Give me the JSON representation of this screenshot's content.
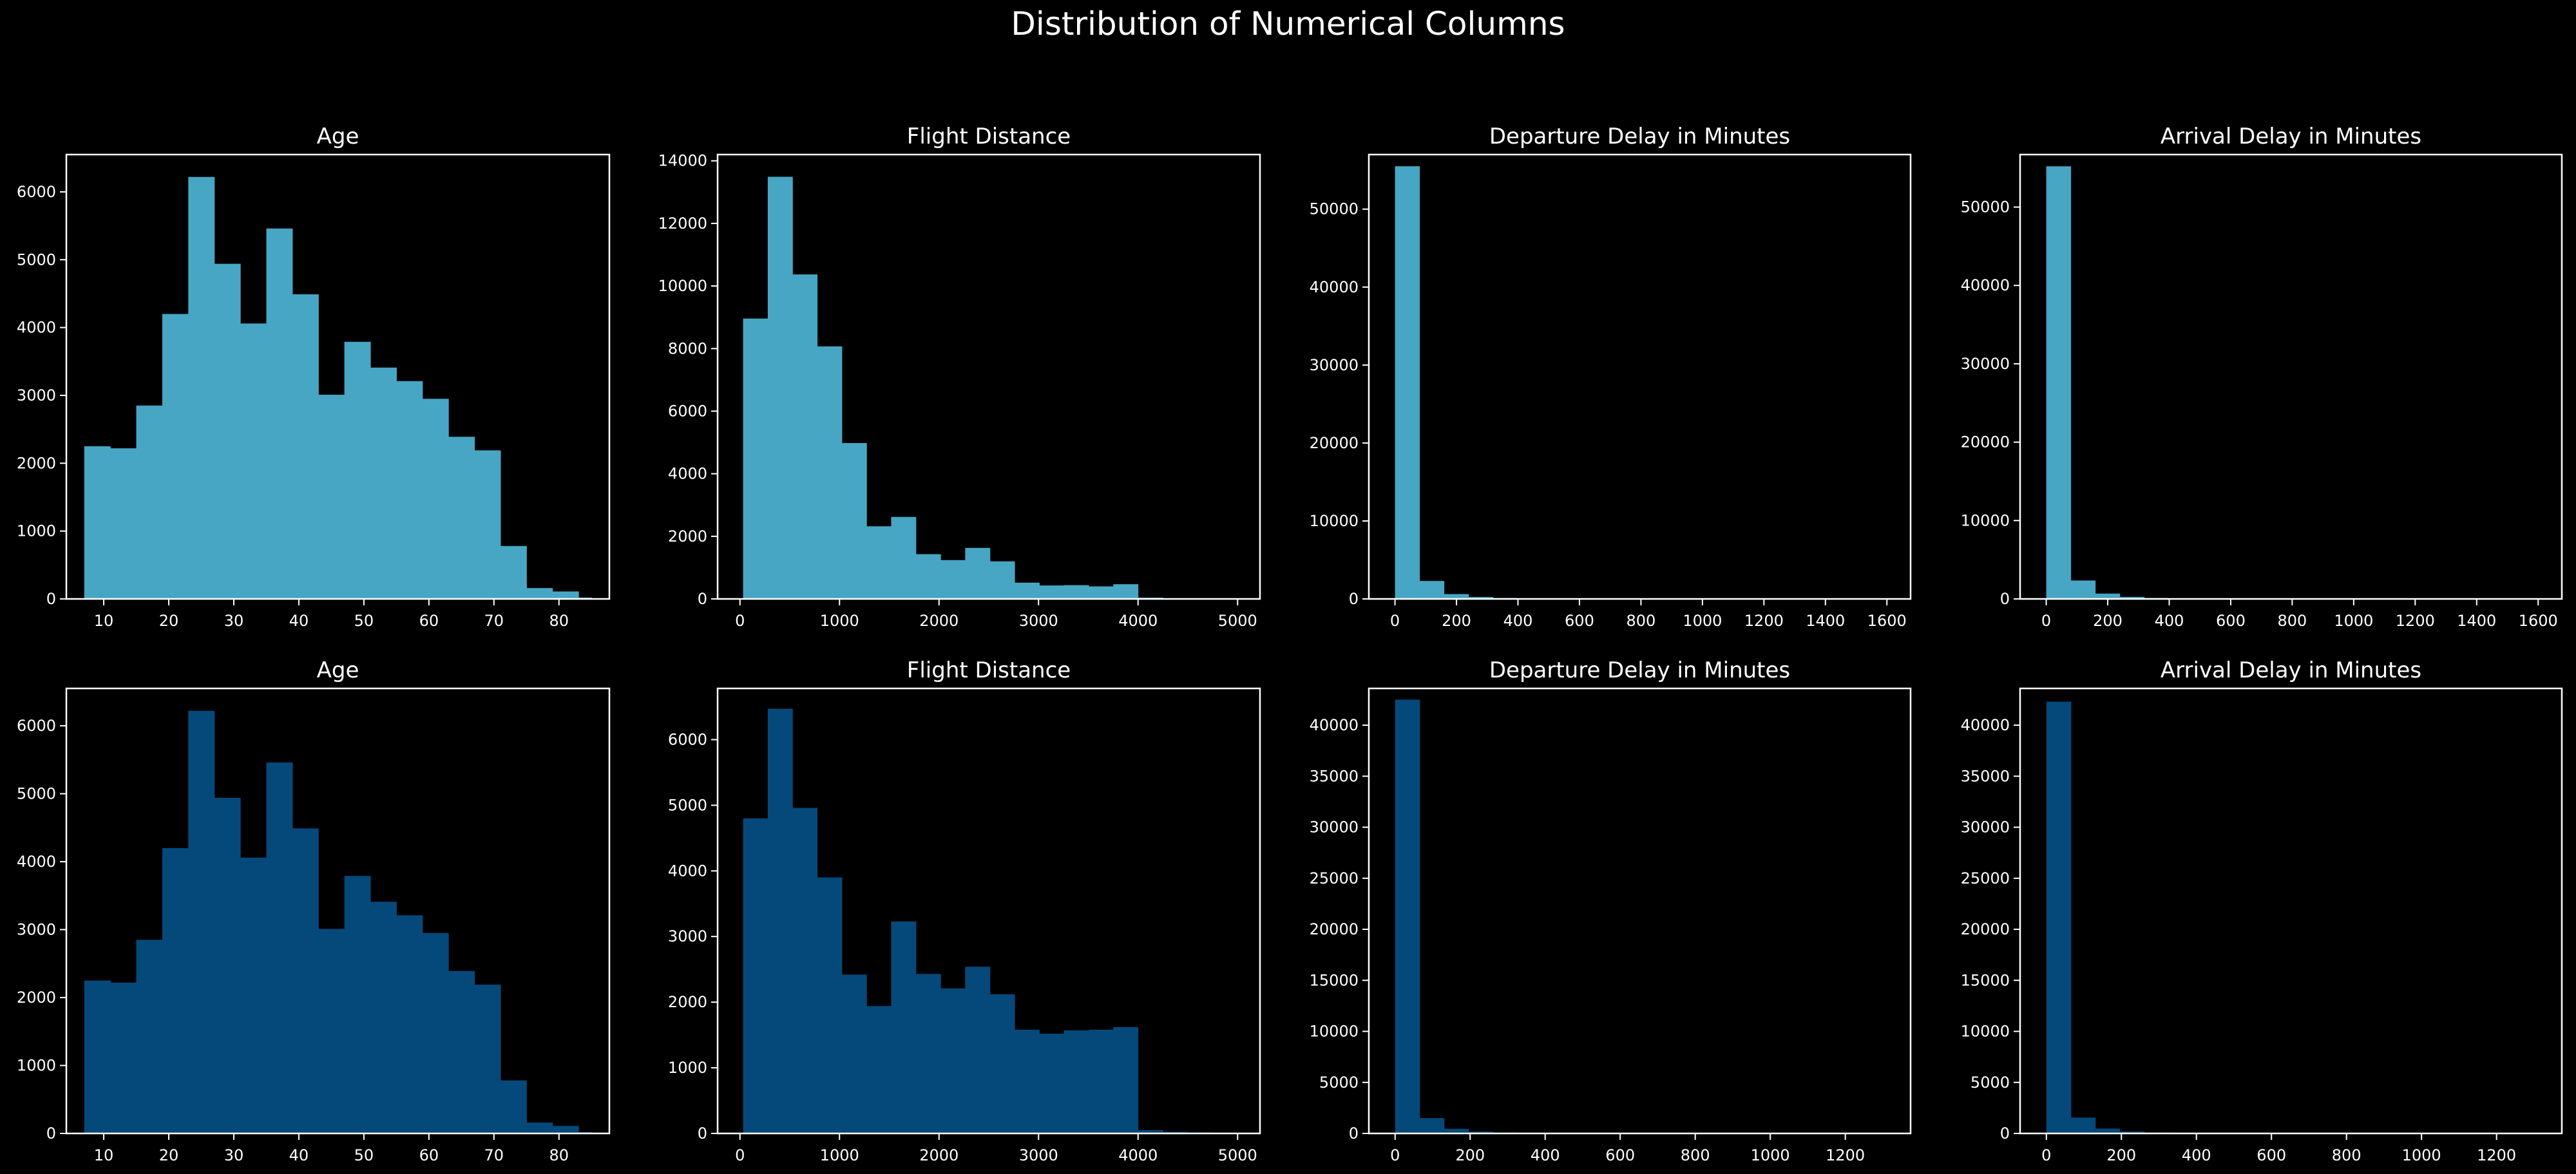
{
  "figure": {
    "title": "Distribution of Numerical Columns",
    "background": "#000000",
    "text_color": "#ffffff"
  },
  "chart_data": [
    {
      "type": "bar",
      "histogram": true,
      "title": "Age",
      "color": "#47a6c4",
      "xlim": [
        4.25,
        87.75
      ],
      "ylim": [
        0,
        6550
      ],
      "xticks": [
        10,
        20,
        30,
        40,
        50,
        60,
        70,
        80
      ],
      "yticks": [
        0,
        1000,
        2000,
        3000,
        4000,
        5000,
        6000
      ],
      "bin_edges": [
        7,
        11,
        15,
        19,
        23,
        27,
        31,
        35,
        39,
        43,
        47,
        51,
        55,
        59,
        63,
        67,
        71,
        75,
        79,
        83,
        85
      ],
      "values": [
        2250,
        2220,
        2850,
        4200,
        6220,
        4940,
        4060,
        5460,
        4490,
        3010,
        3790,
        3410,
        3210,
        2950,
        2390,
        2190,
        780,
        160,
        110,
        20
      ]
    },
    {
      "type": "bar",
      "histogram": true,
      "title": "Flight Distance",
      "color": "#47a6c4",
      "xlim": [
        -225,
        5225
      ],
      "ylim": [
        0,
        14200
      ],
      "xticks": [
        0,
        1000,
        2000,
        3000,
        4000,
        5000
      ],
      "yticks": [
        0,
        2000,
        4000,
        6000,
        8000,
        10000,
        12000,
        14000
      ],
      "bin_edges": [
        31,
        279,
        527,
        775,
        1023,
        1271,
        1519,
        1767,
        2015,
        2263,
        2511,
        2759,
        3007,
        3255,
        3503,
        3751,
        3999,
        4247,
        4495,
        4743,
        4983
      ],
      "values": [
        8960,
        13490,
        10370,
        8070,
        4980,
        2320,
        2620,
        1430,
        1240,
        1630,
        1200,
        520,
        430,
        440,
        400,
        470,
        40,
        20,
        10,
        10
      ]
    },
    {
      "type": "bar",
      "histogram": true,
      "title": "Departure Delay in Minutes",
      "color": "#47a6c4",
      "xlim": [
        -85,
        1677
      ],
      "ylim": [
        0,
        57000
      ],
      "xticks": [
        0,
        200,
        400,
        600,
        800,
        1000,
        1200,
        1400,
        1600
      ],
      "yticks": [
        0,
        10000,
        20000,
        30000,
        40000,
        50000
      ],
      "bin_edges": [
        0,
        79.6,
        159.2,
        238.8,
        318.4,
        398,
        477.6,
        557.2,
        636.8,
        716.4,
        796,
        875.6,
        955.2,
        1034.8,
        1114.4,
        1194,
        1273.6,
        1353.2,
        1432.8,
        1512.4,
        1592
      ],
      "values": [
        55500,
        2300,
        620,
        250,
        120,
        70,
        40,
        30,
        20,
        15,
        10,
        8,
        6,
        5,
        4,
        3,
        2,
        2,
        1,
        1
      ]
    },
    {
      "type": "bar",
      "histogram": true,
      "title": "Arrival Delay in Minutes",
      "color": "#47a6c4",
      "xlim": [
        -85,
        1677
      ],
      "ylim": [
        0,
        56700
      ],
      "xticks": [
        0,
        200,
        400,
        600,
        800,
        1000,
        1200,
        1400,
        1600
      ],
      "yticks": [
        0,
        10000,
        20000,
        30000,
        40000,
        50000
      ],
      "bin_edges": [
        0,
        79.6,
        159.2,
        238.8,
        318.4,
        398,
        477.6,
        557.2,
        636.8,
        716.4,
        796,
        875.6,
        955.2,
        1034.8,
        1114.4,
        1194,
        1273.6,
        1353.2,
        1432.8,
        1512.4,
        1592
      ],
      "values": [
        55200,
        2350,
        680,
        260,
        120,
        70,
        40,
        30,
        20,
        15,
        10,
        8,
        6,
        5,
        4,
        3,
        2,
        2,
        1,
        1
      ]
    },
    {
      "type": "bar",
      "histogram": true,
      "title": "Age",
      "color": "#05497a",
      "xlim": [
        4.25,
        87.75
      ],
      "ylim": [
        0,
        6550
      ],
      "xticks": [
        10,
        20,
        30,
        40,
        50,
        60,
        70,
        80
      ],
      "yticks": [
        0,
        1000,
        2000,
        3000,
        4000,
        5000,
        6000
      ],
      "bin_edges": [
        7,
        11,
        15,
        19,
        23,
        27,
        31,
        35,
        39,
        43,
        47,
        51,
        55,
        59,
        63,
        67,
        71,
        75,
        79,
        83,
        85
      ],
      "values": [
        2250,
        2220,
        2850,
        4200,
        6220,
        4940,
        4060,
        5460,
        4490,
        3010,
        3790,
        3410,
        3210,
        2950,
        2390,
        2190,
        780,
        160,
        110,
        20
      ]
    },
    {
      "type": "bar",
      "histogram": true,
      "title": "Flight Distance",
      "color": "#05497a",
      "xlim": [
        -225,
        5225
      ],
      "ylim": [
        0,
        6780
      ],
      "xticks": [
        0,
        1000,
        2000,
        3000,
        4000,
        5000
      ],
      "yticks": [
        0,
        1000,
        2000,
        3000,
        4000,
        5000,
        6000
      ],
      "bin_edges": [
        31,
        279,
        527,
        775,
        1023,
        1271,
        1519,
        1767,
        2015,
        2263,
        2511,
        2759,
        3007,
        3255,
        3503,
        3751,
        3999,
        4247,
        4495,
        4743,
        4983
      ],
      "values": [
        4800,
        6470,
        4960,
        3900,
        2420,
        1940,
        3230,
        2430,
        2210,
        2540,
        2120,
        1580,
        1520,
        1570,
        1580,
        1620,
        50,
        25,
        15,
        10
      ]
    },
    {
      "type": "bar",
      "histogram": true,
      "title": "Departure Delay in Minutes",
      "color": "#05497a",
      "xlim": [
        -70,
        1374
      ],
      "ylim": [
        0,
        43600
      ],
      "xticks": [
        0,
        200,
        400,
        600,
        800,
        1000,
        1200
      ],
      "yticks": [
        0,
        5000,
        10000,
        15000,
        20000,
        25000,
        30000,
        35000,
        40000
      ],
      "bin_edges": [
        0,
        65.2,
        130.4,
        195.6,
        260.8,
        326,
        391.2,
        456.4,
        521.6,
        586.8,
        652,
        717.2,
        782.4,
        847.6,
        912.8,
        978,
        1043.2,
        1108.4,
        1173.6,
        1238.8,
        1304
      ],
      "values": [
        42500,
        1500,
        450,
        180,
        90,
        50,
        30,
        20,
        15,
        10,
        8,
        6,
        5,
        4,
        3,
        2,
        2,
        1,
        1,
        1
      ]
    },
    {
      "type": "bar",
      "histogram": true,
      "title": "Arrival Delay in Minutes",
      "color": "#05497a",
      "xlim": [
        -70,
        1374
      ],
      "ylim": [
        0,
        43600
      ],
      "xticks": [
        0,
        200,
        400,
        600,
        800,
        1000,
        1200
      ],
      "yticks": [
        0,
        5000,
        10000,
        15000,
        20000,
        25000,
        30000,
        35000,
        40000
      ],
      "bin_edges": [
        0,
        65.2,
        130.4,
        195.6,
        260.8,
        326,
        391.2,
        456.4,
        521.6,
        586.8,
        652,
        717.2,
        782.4,
        847.6,
        912.8,
        978,
        1043.2,
        1108.4,
        1173.6,
        1238.8,
        1304
      ],
      "values": [
        42300,
        1550,
        470,
        190,
        95,
        50,
        30,
        20,
        15,
        10,
        8,
        6,
        5,
        4,
        3,
        2,
        2,
        1,
        1,
        1
      ]
    }
  ]
}
